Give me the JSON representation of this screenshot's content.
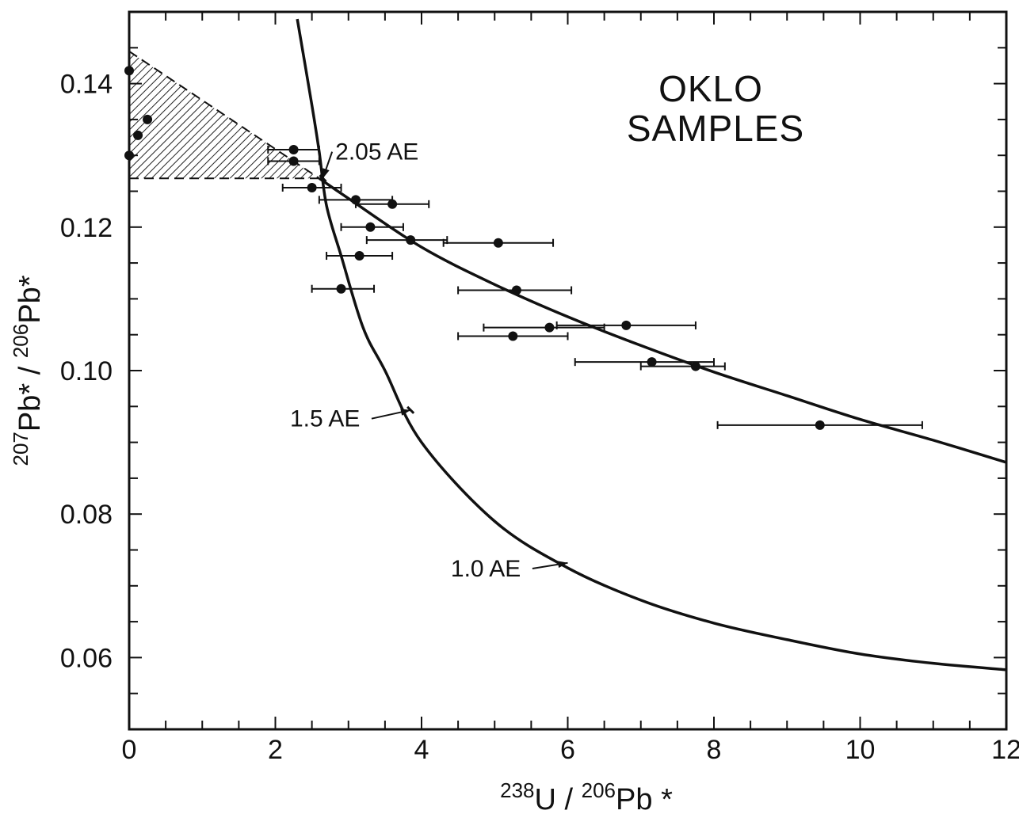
{
  "chart_data": {
    "type": "scatter",
    "title": [
      "OKLO",
      "SAMPLES"
    ],
    "xlabel": {
      "parts": [
        {
          "text": "238",
          "sup": true
        },
        {
          "text": "U / ",
          "sup": false
        },
        {
          "text": "206",
          "sup": true
        },
        {
          "text": "Pb *",
          "sup": false
        }
      ]
    },
    "ylabel": {
      "parts": [
        {
          "text": "207",
          "sup": true
        },
        {
          "text": "Pb* / ",
          "sup": false
        },
        {
          "text": "206",
          "sup": true
        },
        {
          "text": "Pb*",
          "sup": false
        }
      ]
    },
    "xlim": [
      0,
      12
    ],
    "ylim": [
      0.05,
      0.15
    ],
    "x_ticks": [
      "0",
      "2",
      "4",
      "6",
      "8",
      "10",
      "12"
    ],
    "y_ticks": [
      "0.06",
      "0.08",
      "0.10",
      "0.12",
      "0.14"
    ],
    "grid": false,
    "shaded_region": {
      "pattern": "hatched",
      "vertices": [
        [
          0,
          0.1445
        ],
        [
          2.6,
          0.1268
        ],
        [
          0,
          0.1268
        ]
      ]
    },
    "curves": [
      {
        "label": "1.5 AE",
        "label_point": [
          3.85,
          0.0945
        ],
        "points": [
          [
            2.3,
            0.149
          ],
          [
            2.5,
            0.137
          ],
          [
            2.6,
            0.1305
          ],
          [
            2.7,
            0.123
          ],
          [
            2.9,
            0.116
          ],
          [
            3.2,
            0.106
          ],
          [
            3.5,
            0.1
          ],
          [
            4.0,
            0.09
          ],
          [
            5.0,
            0.079
          ],
          [
            6.0,
            0.0725
          ],
          [
            7.0,
            0.068
          ],
          [
            8.0,
            0.0648
          ],
          [
            9.0,
            0.0625
          ],
          [
            10.0,
            0.0605
          ],
          [
            11.0,
            0.0592
          ],
          [
            12.0,
            0.0583
          ]
        ]
      },
      {
        "label": "2.05 AE",
        "label_point": [
          2.65,
          0.1268
        ],
        "points": [
          [
            2.6,
            0.1268
          ],
          [
            3.0,
            0.124
          ],
          [
            4.0,
            0.1172
          ],
          [
            5.0,
            0.112
          ],
          [
            6.0,
            0.1075
          ],
          [
            7.0,
            0.1035
          ],
          [
            8.0,
            0.0998
          ],
          [
            9.0,
            0.0965
          ],
          [
            10.0,
            0.0932
          ],
          [
            11.0,
            0.0903
          ],
          [
            12.0,
            0.0872
          ]
        ]
      }
    ],
    "curve_labels": [
      {
        "text": "2.05 AE",
        "at": [
          2.82,
          0.1294
        ],
        "arrow_to": [
          2.65,
          0.1268
        ]
      },
      {
        "text": "1.5 AE",
        "at": [
          2.2,
          0.0922
        ],
        "arrow_to": [
          3.85,
          0.0945
        ]
      },
      {
        "text": "1.0 AE",
        "at": [
          4.4,
          0.0713
        ],
        "arrow_to": [
          6.0,
          0.0732
        ]
      }
    ],
    "points": [
      {
        "x": 0.0,
        "y": 0.1418
      },
      {
        "x": 0.25,
        "y": 0.135
      },
      {
        "x": 0.12,
        "y": 0.1328
      },
      {
        "x": 0.0,
        "y": 0.13
      },
      {
        "x": 2.25,
        "y": 0.1308,
        "xerr": [
          1.9,
          2.6
        ]
      },
      {
        "x": 2.25,
        "y": 0.1292,
        "xerr": [
          1.9,
          2.6
        ]
      },
      {
        "x": 2.5,
        "y": 0.1255,
        "xerr": [
          2.1,
          2.9
        ]
      },
      {
        "x": 3.1,
        "y": 0.1238,
        "xerr": [
          2.6,
          3.6
        ]
      },
      {
        "x": 3.6,
        "y": 0.1232,
        "xerr": [
          3.1,
          4.1
        ]
      },
      {
        "x": 3.3,
        "y": 0.12,
        "xerr": [
          2.9,
          3.75
        ]
      },
      {
        "x": 3.85,
        "y": 0.1182,
        "xerr": [
          3.25,
          4.35
        ]
      },
      {
        "x": 5.05,
        "y": 0.1178,
        "xerr": [
          4.3,
          5.8
        ]
      },
      {
        "x": 3.15,
        "y": 0.116,
        "xerr": [
          2.7,
          3.6
        ]
      },
      {
        "x": 2.9,
        "y": 0.1114,
        "xerr": [
          2.5,
          3.35
        ]
      },
      {
        "x": 5.3,
        "y": 0.1112,
        "xerr": [
          4.5,
          6.05
        ]
      },
      {
        "x": 5.75,
        "y": 0.106,
        "xerr": [
          4.85,
          6.5
        ]
      },
      {
        "x": 6.8,
        "y": 0.1063,
        "xerr": [
          5.85,
          7.75
        ]
      },
      {
        "x": 5.25,
        "y": 0.1048,
        "xerr": [
          4.5,
          6.0
        ]
      },
      {
        "x": 7.15,
        "y": 0.1012,
        "xerr": [
          6.1,
          8.0
        ]
      },
      {
        "x": 7.75,
        "y": 0.1006,
        "xerr": [
          7.0,
          8.15
        ]
      },
      {
        "x": 9.45,
        "y": 0.0924,
        "xerr": [
          8.05,
          10.85
        ]
      }
    ]
  }
}
